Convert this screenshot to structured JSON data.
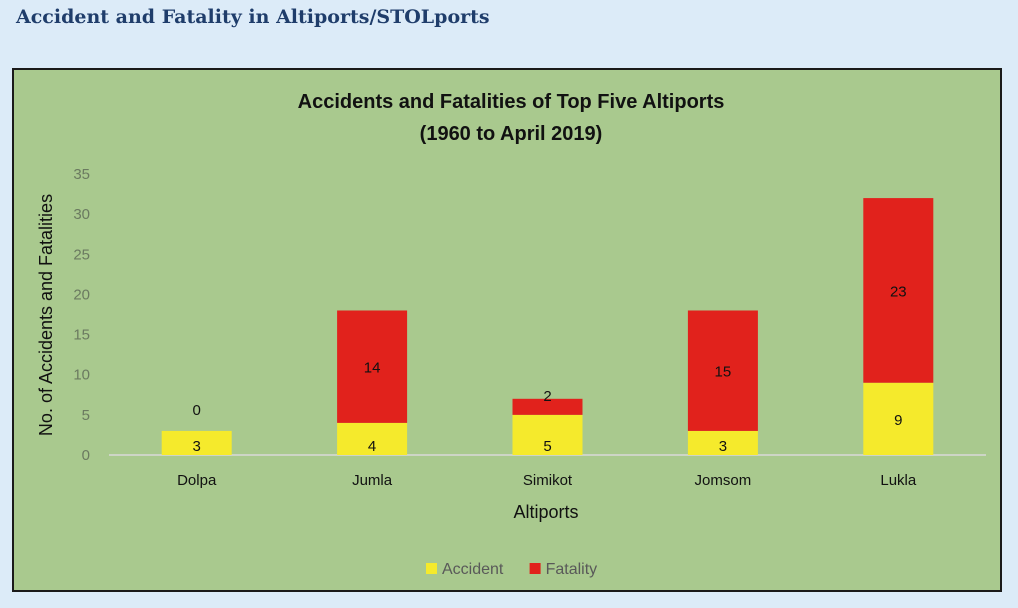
{
  "page": {
    "heading": "Accident and Fatality in Altiports/STOLports"
  },
  "chart_data": {
    "type": "bar",
    "stacked": true,
    "title": "Accidents and Fatalities of Top Five Altiports",
    "subtitle": "(1960 to April 2019)",
    "xlabel": "Altiports",
    "ylabel": "No. of Accidents and Fatalities",
    "ylim": [
      0,
      35
    ],
    "yticks": [
      0,
      5,
      10,
      15,
      20,
      25,
      30,
      35
    ],
    "categories": [
      "Dolpa",
      "Jumla",
      "Simikot",
      "Jomsom",
      "Lukla"
    ],
    "series": [
      {
        "name": "Accident",
        "color": "#f5ea2c",
        "values": [
          3,
          4,
          5,
          3,
          9
        ]
      },
      {
        "name": "Fatality",
        "color": "#e1221c",
        "values": [
          0,
          14,
          2,
          15,
          23
        ]
      }
    ],
    "legend_position": "bottom",
    "grid": false
  }
}
